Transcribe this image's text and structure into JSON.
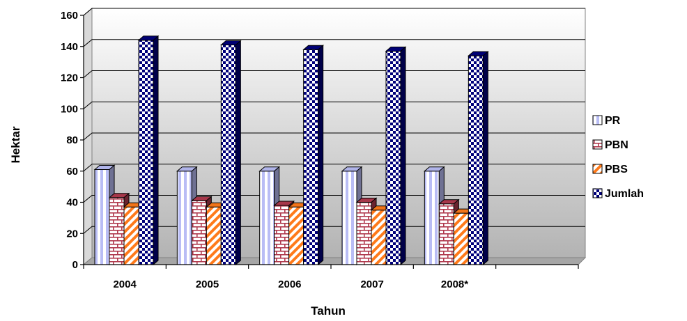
{
  "chart_data": {
    "type": "bar",
    "title": "",
    "xlabel": "Tahun",
    "ylabel": "Hektar",
    "categories": [
      "2004",
      "2005",
      "2006",
      "2007",
      "2008*"
    ],
    "ylim": [
      0,
      160
    ],
    "ytick_step": 20,
    "grid": true,
    "legend_position": "right",
    "series": [
      {
        "name": "PR",
        "values": [
          61,
          60,
          60,
          60,
          60
        ],
        "color": "#b9bdf5",
        "pattern": "vertical-stripes"
      },
      {
        "name": "PBN",
        "values": [
          43,
          41,
          38,
          40,
          39
        ],
        "color": "#b03a4e",
        "pattern": "brick"
      },
      {
        "name": "PBS",
        "values": [
          37,
          37,
          37,
          35,
          33
        ],
        "color": "#ff7a1a",
        "pattern": "diagonal-stripes"
      },
      {
        "name": "Jumlah",
        "values": [
          144,
          141,
          138,
          137,
          134
        ],
        "color": "#00007a",
        "pattern": "checkerboard"
      }
    ]
  }
}
